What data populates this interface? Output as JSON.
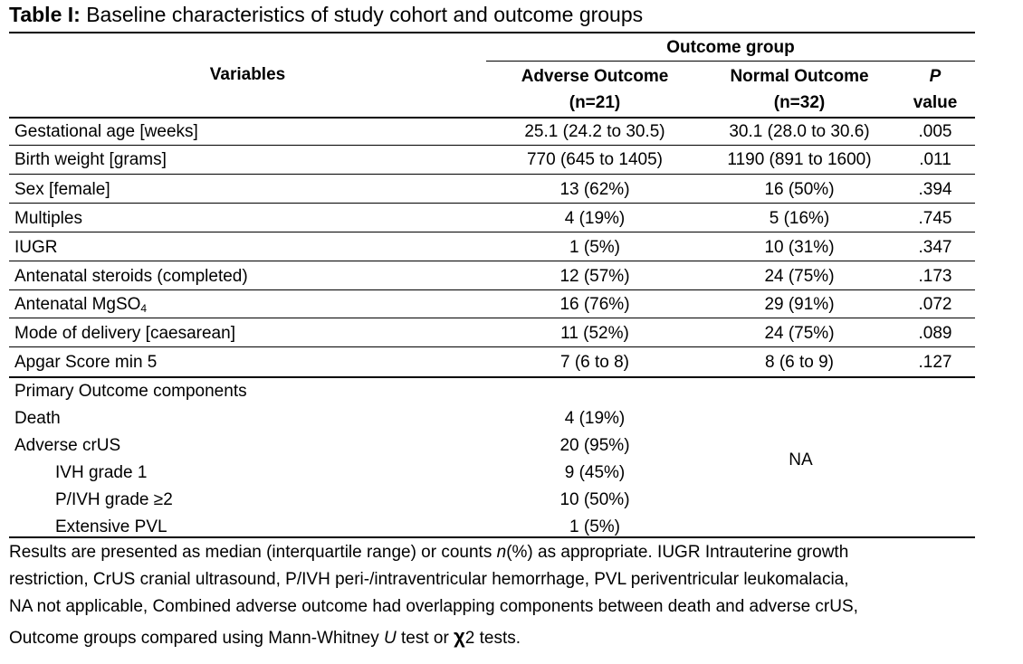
{
  "caption": {
    "label": "Table I:",
    "text": " Baseline characteristics of study cohort and outcome groups"
  },
  "header": {
    "group": "Outcome group",
    "variables": "Variables",
    "adverse_line1": "Adverse Outcome",
    "adverse_line2": "(n=21)",
    "normal_line1": "Normal Outcome",
    "normal_line2": "(n=32)",
    "p_line1": "P",
    "p_line2": "value"
  },
  "rows": [
    {
      "label": "Gestational age [weeks]",
      "adverse": "25.1 (24.2 to 30.5)",
      "normal": "30.1 (28.0 to 30.6)",
      "p": ".005"
    },
    {
      "label": "Birth weight [grams]",
      "adverse": "770 (645 to 1405)",
      "normal": "1190 (891 to 1600)",
      "p": ".011"
    },
    {
      "label": "Sex [female]",
      "adverse": "13 (62%)",
      "normal": "16 (50%)",
      "p": ".394"
    },
    {
      "label": "Multiples",
      "adverse": "4 (19%)",
      "normal": "5 (16%)",
      "p": ".745"
    },
    {
      "label": "IUGR",
      "adverse": "1 (5%)",
      "normal": "10 (31%)",
      "p": ".347"
    },
    {
      "label": "Antenatal steroids (completed)",
      "adverse": "12 (57%)",
      "normal": "24 (75%)",
      "p": ".173"
    },
    {
      "label_main": "Antenatal MgSO",
      "label_sub": "4",
      "adverse": "16 (76%)",
      "normal": "29 (91%)",
      "p": ".072"
    },
    {
      "label": "Mode of delivery [caesarean]",
      "adverse": "11 (52%)",
      "normal": "24 (75%)",
      "p": ".089"
    },
    {
      "label": "Apgar Score min 5",
      "adverse": "7 (6 to 8)",
      "normal": "8 (6 to 9)",
      "p": ".127"
    }
  ],
  "primary": {
    "heading": "Primary Outcome components",
    "items": [
      {
        "label": "Death",
        "adverse": "4 (19%)"
      },
      {
        "label": "Adverse crUS",
        "adverse": "20 (95%)"
      },
      {
        "label": "IVH grade 1",
        "adverse": "9 (45%)"
      },
      {
        "label": "P/IVH grade ≥2",
        "adverse": "10 (50%)"
      },
      {
        "label": "Extensive PVL",
        "adverse": "1 (5%)"
      }
    ],
    "normal_na": "NA"
  },
  "footnote": {
    "l1a": "Results are presented as median (interquartile range) or counts ",
    "l1n": "n",
    "l1b": "(%) as appropriate. IUGR Intrauterine growth",
    "l2": "restriction, CrUS cranial ultrasound, P/IVH peri-/intraventricular hemorrhage, PVL periventricular leukomalacia,",
    "l3": "NA not applicable, Combined adverse outcome had overlapping components between death and adverse crUS,",
    "l4a": "Outcome groups compared using Mann-Whitney ",
    "l4u": "U",
    "l4b": " test or ",
    "l4chi": "χ",
    "l4c": "2 tests."
  }
}
